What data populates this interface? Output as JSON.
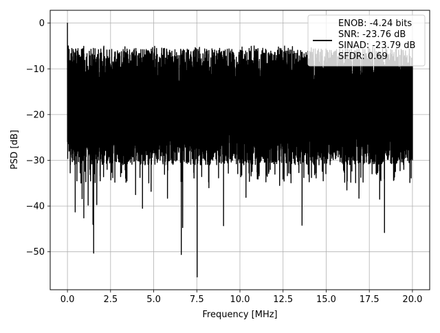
{
  "chart_data": {
    "type": "line",
    "title": "",
    "xlabel": "Frequency [MHz]",
    "ylabel": "PSD [dB]",
    "xlim": [
      -1.0,
      21.0
    ],
    "ylim": [
      -58.3,
      2.8
    ],
    "xticks": [
      0.0,
      2.5,
      5.0,
      7.5,
      10.0,
      12.5,
      15.0,
      17.5,
      20.0
    ],
    "xtick_labels": [
      "0.0",
      "2.5",
      "5.0",
      "7.5",
      "10.0",
      "12.5",
      "15.0",
      "17.5",
      "20.0"
    ],
    "yticks": [
      0,
      -10,
      -20,
      -30,
      -40,
      -50
    ],
    "ytick_labels": [
      "0",
      "−10",
      "−20",
      "−30",
      "−40",
      "−50"
    ],
    "grid": true,
    "legend_position": "top-right",
    "legend_entries": [
      "ENOB: -4.24 bits",
      "SNR: -23.76 dB",
      "SINAD: -23.79 dB",
      "SFDR: 0.69"
    ],
    "series": [
      {
        "color": "#000000",
        "x_range": [
          0.0,
          20.0
        ],
        "noise_band": {
          "upper_typical": -10,
          "lower_typical": -27,
          "peak_upper": -5,
          "floor_typical": -32
        },
        "points": [
          [
            0.0,
            0.0
          ],
          [
            0.02,
            -12.8
          ],
          [
            0.05,
            -5.0
          ],
          [
            0.08,
            -23.6
          ],
          [
            0.12,
            -8.2
          ],
          [
            0.3,
            -24.0
          ],
          [
            0.45,
            -41.3
          ],
          [
            0.55,
            -34.5
          ],
          [
            0.85,
            -38.4
          ],
          [
            0.95,
            -42.6
          ],
          [
            1.2,
            -39.8
          ],
          [
            1.3,
            -32.0
          ],
          [
            1.48,
            -44.0
          ],
          [
            1.52,
            -50.3
          ],
          [
            1.7,
            -39.7
          ],
          [
            1.9,
            -34.5
          ],
          [
            2.3,
            -32.0
          ],
          [
            3.4,
            -31.0
          ],
          [
            3.95,
            -37.5
          ],
          [
            4.35,
            -40.5
          ],
          [
            4.85,
            -36.8
          ],
          [
            5.8,
            -38.3
          ],
          [
            6.6,
            -50.6
          ],
          [
            6.68,
            -44.7
          ],
          [
            7.52,
            -55.5
          ],
          [
            8.2,
            -36.0
          ],
          [
            9.05,
            -44.3
          ],
          [
            10.35,
            -38.1
          ],
          [
            11.05,
            -34.1
          ],
          [
            12.3,
            -35.5
          ],
          [
            13.6,
            -44.2
          ],
          [
            16.2,
            -36.5
          ],
          [
            16.9,
            -38.3
          ],
          [
            18.1,
            -38.5
          ],
          [
            18.38,
            -45.8
          ],
          [
            19.5,
            -32.0
          ],
          [
            20.0,
            -30.0
          ]
        ]
      }
    ]
  }
}
